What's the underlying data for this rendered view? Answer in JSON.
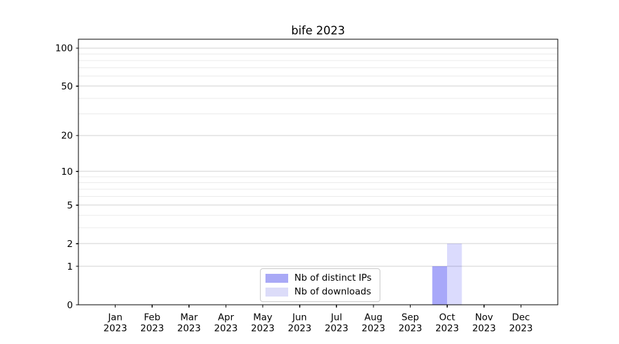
{
  "chart_data": {
    "type": "bar",
    "title": "bife 2023",
    "scale": "log1p",
    "categories": [
      "Jan",
      "Feb",
      "Mar",
      "Apr",
      "May",
      "Jun",
      "Jul",
      "Aug",
      "Sep",
      "Oct",
      "Nov",
      "Dec"
    ],
    "year_label": "2023",
    "y_ticks": [
      0,
      1,
      2,
      5,
      10,
      20,
      50,
      100
    ],
    "y_minor_ticks": [
      3,
      4,
      6,
      7,
      8,
      9,
      30,
      40,
      60,
      70,
      80,
      90
    ],
    "ylim": [
      0,
      117.5
    ],
    "series": [
      {
        "name": "Nb of distinct IPs",
        "color": "#a9a9f6",
        "base_color": "#0000ee",
        "fill_opacity": 0.34,
        "values": [
          0,
          0,
          0,
          0,
          0,
          0,
          0,
          0,
          0,
          1,
          0,
          0
        ]
      },
      {
        "name": "Nb of downloads",
        "color": "#dcdcf9",
        "base_color": "#0000ee",
        "fill_opacity": 0.14,
        "values": [
          0,
          0,
          0,
          0,
          0,
          0,
          0,
          0,
          0,
          2,
          0,
          0
        ]
      }
    ],
    "legend_position": "lower center",
    "grid": {
      "major_color": "#d0d0d0",
      "minor_color": "#ebebeb"
    },
    "axis_color": "#000000",
    "bar_width_fraction": 0.4
  }
}
